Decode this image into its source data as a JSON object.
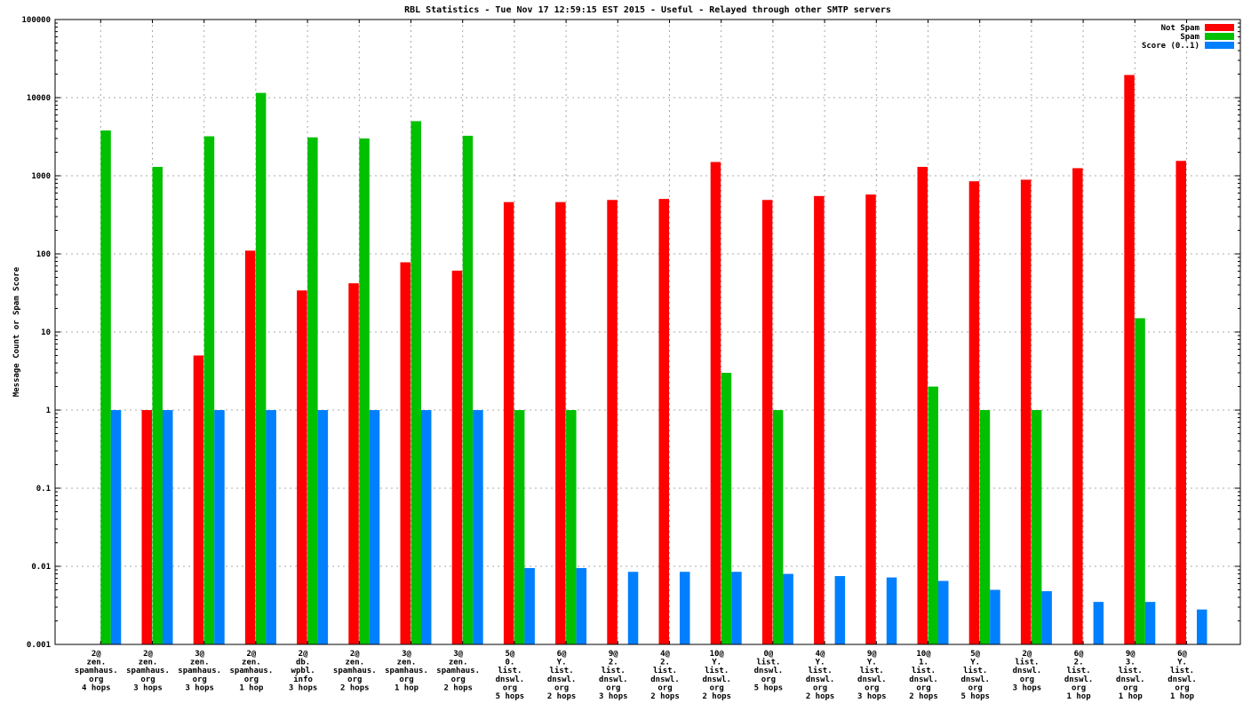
{
  "title": "RBL Statistics - Tue Nov 17 12:59:15 EST 2015 - Useful - Relayed through other SMTP servers",
  "colors": {
    "not_spam": "#ff0000",
    "spam": "#00c000",
    "score": "#0080ff",
    "grid": "#a8a8a8",
    "axis": "#000000",
    "background": "#ffffff"
  },
  "chart_data": {
    "type": "bar",
    "title": "RBL Statistics - Tue Nov 17 12:59:15 EST 2015 - Useful - Relayed through other SMTP servers",
    "xlabel": "",
    "ylabel": "Message Count or Spam Score",
    "yscale": "log",
    "ylim": [
      0.001,
      100000
    ],
    "ytick_labels": [
      "100000",
      "10000",
      "1000",
      "100",
      "10",
      "1",
      "0.1",
      "0.01",
      "0.001"
    ],
    "grid": true,
    "legend_position": "top-right",
    "legend": [
      {
        "name": "Not Spam",
        "color": "#ff0000"
      },
      {
        "name": "Spam",
        "color": "#00c000"
      },
      {
        "name": "Score (0..1)",
        "color": "#0080ff"
      }
    ],
    "series_names": [
      "Not Spam",
      "Spam",
      "Score (0..1)"
    ],
    "groups": [
      {
        "label_lines": [
          "2@",
          "zen.",
          "spamhaus.",
          "org",
          "4 hops"
        ],
        "not_spam": null,
        "spam": 3800,
        "score": 1.0
      },
      {
        "label_lines": [
          "2@",
          "zen.",
          "spamhaus.",
          "org",
          "3 hops"
        ],
        "not_spam": 1,
        "spam": 1300,
        "score": 1.0
      },
      {
        "label_lines": [
          "3@",
          "zen.",
          "spamhaus.",
          "org",
          "3 hops"
        ],
        "not_spam": 5,
        "spam": 3200,
        "score": 1.0
      },
      {
        "label_lines": [
          "2@",
          "zen.",
          "spamhaus.",
          "org",
          "1 hop"
        ],
        "not_spam": 110,
        "spam": 11500,
        "score": 1.0
      },
      {
        "label_lines": [
          "2@",
          "db.",
          "wpbl.",
          "info",
          "3 hops"
        ],
        "not_spam": 34,
        "spam": 3100,
        "score": 1.0
      },
      {
        "label_lines": [
          "2@",
          "zen.",
          "spamhaus.",
          "org",
          "2 hops"
        ],
        "not_spam": 42,
        "spam": 3000,
        "score": 1.0
      },
      {
        "label_lines": [
          "3@",
          "zen.",
          "spamhaus.",
          "org",
          "1 hop"
        ],
        "not_spam": 78,
        "spam": 5000,
        "score": 1.0
      },
      {
        "label_lines": [
          "3@",
          "zen.",
          "spamhaus.",
          "org",
          "2 hops"
        ],
        "not_spam": 61,
        "spam": 3250,
        "score": 1.0
      },
      {
        "label_lines": [
          "5@",
          "0.",
          "list.",
          "dnswl.",
          "org",
          "5 hops"
        ],
        "not_spam": 460,
        "spam": 1,
        "score": 0.0095
      },
      {
        "label_lines": [
          "6@",
          "Y.",
          "list.",
          "dnswl.",
          "org",
          "2 hops"
        ],
        "not_spam": 460,
        "spam": 1,
        "score": 0.0095
      },
      {
        "label_lines": [
          "9@",
          "2.",
          "list.",
          "dnswl.",
          "org",
          "3 hops"
        ],
        "not_spam": 490,
        "spam": null,
        "score": 0.0085
      },
      {
        "label_lines": [
          "4@",
          "2.",
          "list.",
          "dnswl.",
          "org",
          "2 hops"
        ],
        "not_spam": 505,
        "spam": null,
        "score": 0.0085
      },
      {
        "label_lines": [
          "10@",
          "Y.",
          "list.",
          "dnswl.",
          "org",
          "2 hops"
        ],
        "not_spam": 1500,
        "spam": 3,
        "score": 0.0085
      },
      {
        "label_lines": [
          "0@",
          "list.",
          "dnswl.",
          "org",
          "5 hops"
        ],
        "not_spam": 490,
        "spam": 1,
        "score": 0.008
      },
      {
        "label_lines": [
          "4@",
          "Y.",
          "list.",
          "dnswl.",
          "org",
          "2 hops"
        ],
        "not_spam": 550,
        "spam": null,
        "score": 0.0075
      },
      {
        "label_lines": [
          "9@",
          "Y.",
          "list.",
          "dnswl.",
          "org",
          "3 hops"
        ],
        "not_spam": 575,
        "spam": null,
        "score": 0.0072
      },
      {
        "label_lines": [
          "10@",
          "1.",
          "list.",
          "dnswl.",
          "org",
          "2 hops"
        ],
        "not_spam": 1300,
        "spam": 2,
        "score": 0.0065
      },
      {
        "label_lines": [
          "5@",
          "Y.",
          "list.",
          "dnswl.",
          "org",
          "5 hops"
        ],
        "not_spam": 850,
        "spam": 1,
        "score": 0.005
      },
      {
        "label_lines": [
          "2@",
          "list.",
          "dnswl.",
          "org",
          "3 hops"
        ],
        "not_spam": 890,
        "spam": 1,
        "score": 0.0048
      },
      {
        "label_lines": [
          "6@",
          "2.",
          "list.",
          "dnswl.",
          "org",
          "1 hop"
        ],
        "not_spam": 1250,
        "spam": null,
        "score": 0.0035
      },
      {
        "label_lines": [
          "9@",
          "3.",
          "list.",
          "dnswl.",
          "org",
          "1 hop"
        ],
        "not_spam": 19500,
        "spam": 15,
        "score": 0.0035
      },
      {
        "label_lines": [
          "6@",
          "Y.",
          "list.",
          "dnswl.",
          "org",
          "1 hop"
        ],
        "not_spam": 1550,
        "spam": null,
        "score": 0.0028
      }
    ]
  }
}
